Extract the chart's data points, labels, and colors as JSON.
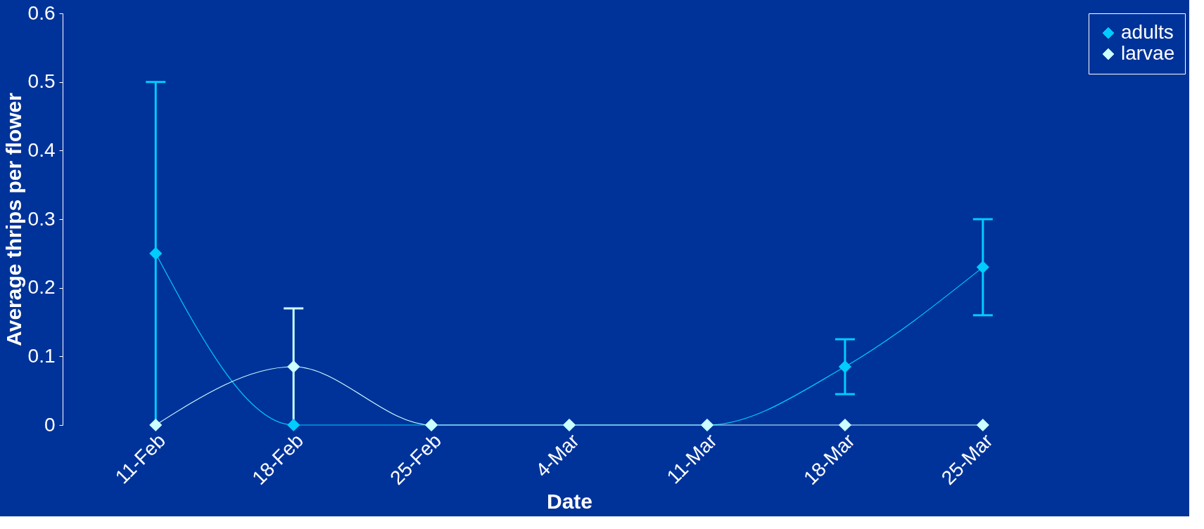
{
  "chart_data": {
    "type": "line",
    "xlabel": "Date",
    "ylabel": "Average thrips per flower",
    "categories": [
      "11-Feb",
      "18-Feb",
      "25-Feb",
      "4-Mar",
      "11-Mar",
      "18-Mar",
      "25-Mar"
    ],
    "series": [
      {
        "name": "adults",
        "color": "#00ccff",
        "values": [
          0.25,
          0,
          0,
          0,
          0,
          0.085,
          0.23
        ],
        "errors": [
          0.25,
          null,
          null,
          null,
          null,
          0.04,
          0.07
        ]
      },
      {
        "name": "larvae",
        "color": "#ccffff",
        "values": [
          0,
          0.085,
          0,
          0,
          0,
          0,
          0
        ],
        "errors": [
          null,
          0.085,
          null,
          null,
          null,
          null,
          null
        ]
      }
    ],
    "ylim": [
      0,
      0.6
    ],
    "yticks": [
      0,
      0.1,
      0.2,
      0.3,
      0.4,
      0.5,
      0.6
    ],
    "grid": false,
    "legend": "right",
    "marker": "diamond",
    "line_style": "solid"
  }
}
